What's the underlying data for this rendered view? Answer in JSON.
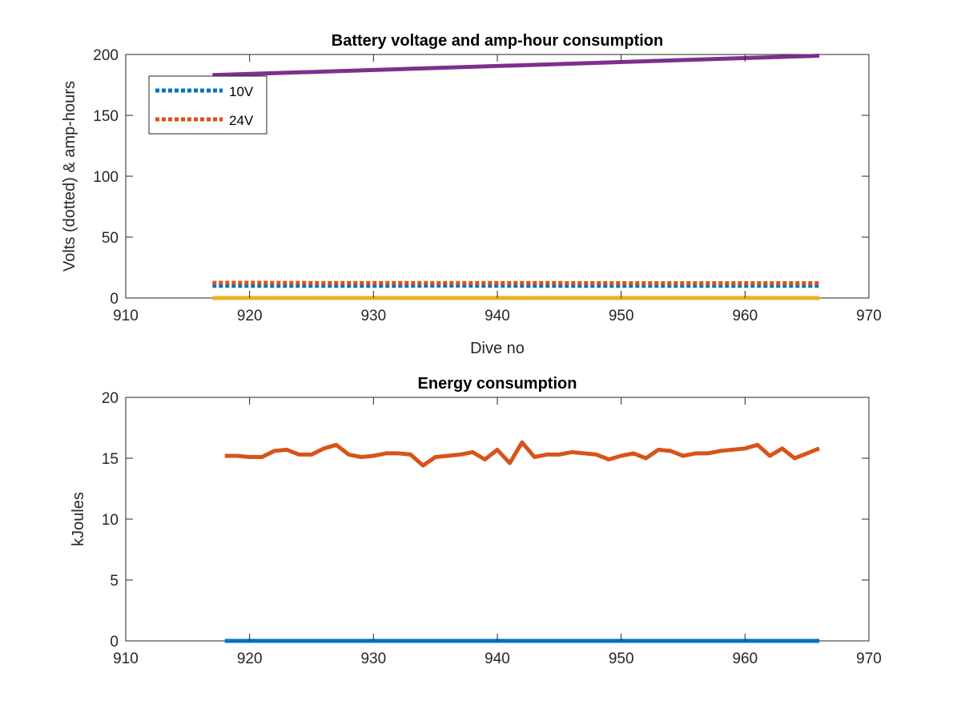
{
  "chart_data": [
    {
      "type": "line",
      "title": "Battery voltage and amp-hour consumption",
      "xlabel": "Dive no",
      "ylabel": "Volts (dotted) & amp-hours",
      "xlim": [
        910,
        970
      ],
      "ylim": [
        0,
        200
      ],
      "xticks": [
        "910",
        "920",
        "930",
        "940",
        "950",
        "960",
        "970"
      ],
      "yticks": [
        "0",
        "50",
        "100",
        "150",
        "200"
      ],
      "grid": false,
      "legend_position": "top-left",
      "series": [
        {
          "name": "10V",
          "style": "dotted",
          "color": "#0072BD",
          "x": [
            917,
            920,
            925,
            930,
            935,
            940,
            945,
            950,
            955,
            960,
            966
          ],
          "y": [
            10,
            10,
            10,
            10,
            10.2,
            10.1,
            10,
            10,
            10,
            10,
            10
          ]
        },
        {
          "name": "24V",
          "style": "dotted",
          "color": "#D95319",
          "x": [
            917,
            920,
            925,
            930,
            935,
            940,
            945,
            950,
            955,
            960,
            966
          ],
          "y": [
            12.5,
            12.5,
            12.4,
            12.4,
            12.3,
            12.3,
            12.3,
            12.2,
            12.2,
            12.2,
            12.2
          ]
        },
        {
          "style": "solid",
          "color": "#EDB120",
          "x": [
            917,
            966
          ],
          "y": [
            0,
            0
          ]
        },
        {
          "style": "solid",
          "color": "#7E2F8E",
          "x": [
            917,
            966
          ],
          "y": [
            183,
            199
          ]
        }
      ]
    },
    {
      "type": "line",
      "title": "Energy consumption",
      "xlabel": "",
      "ylabel": "kJoules",
      "xlim": [
        910,
        970
      ],
      "ylim": [
        0,
        20
      ],
      "xticks": [
        "910",
        "920",
        "930",
        "940",
        "950",
        "960",
        "970"
      ],
      "yticks": [
        "0",
        "5",
        "10",
        "15",
        "20"
      ],
      "grid": false,
      "series": [
        {
          "style": "solid",
          "color": "#0072BD",
          "x": [
            918,
            966
          ],
          "y": [
            0,
            0
          ]
        },
        {
          "style": "solid",
          "color": "#D95319",
          "x": [
            918,
            919,
            920,
            921,
            922,
            923,
            924,
            925,
            926,
            927,
            928,
            929,
            930,
            931,
            932,
            933,
            934,
            935,
            936,
            937,
            938,
            939,
            940,
            941,
            942,
            943,
            944,
            945,
            946,
            947,
            948,
            949,
            950,
            951,
            952,
            953,
            954,
            955,
            956,
            957,
            958,
            959,
            960,
            961,
            962,
            963,
            964,
            965,
            966
          ],
          "y": [
            15.2,
            15.2,
            15.1,
            15.1,
            15.6,
            15.7,
            15.3,
            15.3,
            15.8,
            16.1,
            15.3,
            15.1,
            15.2,
            15.4,
            15.4,
            15.3,
            14.4,
            15.1,
            15.2,
            15.3,
            15.5,
            14.9,
            15.7,
            14.6,
            16.3,
            15.1,
            15.3,
            15.3,
            15.5,
            15.4,
            15.3,
            14.9,
            15.2,
            15.4,
            15.0,
            15.7,
            15.6,
            15.2,
            15.4,
            15.4,
            15.6,
            15.7,
            15.8,
            16.1,
            15.2,
            15.8,
            15.0,
            15.4,
            15.8
          ]
        }
      ]
    }
  ]
}
